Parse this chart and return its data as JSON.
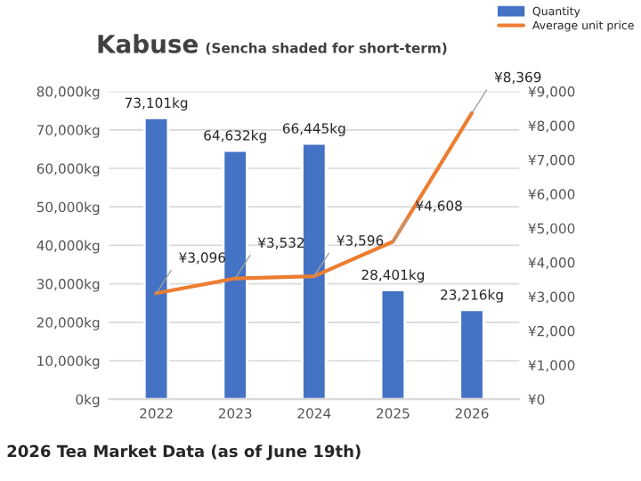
{
  "chart_data": {
    "type": "bar",
    "title": "Kabuse",
    "subtitle": "(Sencha shaded for short-term)",
    "categories": [
      "2022",
      "2023",
      "2024",
      "2025",
      "2026"
    ],
    "series": [
      {
        "name": "Quantity",
        "color": "#4472c4",
        "values": [
          73101,
          64632,
          66445,
          28401,
          23216
        ],
        "value_labels": [
          "73,101kg",
          "64,632kg",
          "66,445kg",
          "28,401kg",
          "23,216kg"
        ]
      },
      {
        "name": "Average unit price",
        "type": "line",
        "axis": "y2",
        "color": "#ed7d31",
        "values": [
          3096,
          3532,
          3596,
          4608,
          8369
        ],
        "value_labels": [
          "¥3,096",
          "¥3,532",
          "¥3,596",
          "¥4,608",
          "¥8,369"
        ]
      }
    ],
    "ylim": [
      0,
      80000
    ],
    "yticks": [
      {
        "value": 0,
        "label": "0kg"
      },
      {
        "value": 10000,
        "label": "10,000kg"
      },
      {
        "value": 20000,
        "label": "20,000kg"
      },
      {
        "value": 30000,
        "label": "30,000kg"
      },
      {
        "value": 40000,
        "label": "40,000kg"
      },
      {
        "value": 50000,
        "label": "50,000kg"
      },
      {
        "value": 60000,
        "label": "60,000kg"
      },
      {
        "value": 70000,
        "label": "70,000kg"
      },
      {
        "value": 80000,
        "label": "80,000kg"
      }
    ],
    "y2lim": [
      0,
      9000
    ],
    "y2ticks": [
      {
        "value": 0,
        "label": "¥0"
      },
      {
        "value": 1000,
        "label": "¥1,000"
      },
      {
        "value": 2000,
        "label": "¥2,000"
      },
      {
        "value": 3000,
        "label": "¥3,000"
      },
      {
        "value": 4000,
        "label": "¥4,000"
      },
      {
        "value": 5000,
        "label": "¥5,000"
      },
      {
        "value": 6000,
        "label": "¥6,000"
      },
      {
        "value": 7000,
        "label": "¥7,000"
      },
      {
        "value": 8000,
        "label": "¥8,000"
      },
      {
        "value": 9000,
        "label": "¥9,000"
      }
    ],
    "grid": "y",
    "legend": "top right",
    "marker": "none",
    "line_style": "solid",
    "annotations": [
      "2026 Tea Market Data (as of June 19th)"
    ]
  }
}
